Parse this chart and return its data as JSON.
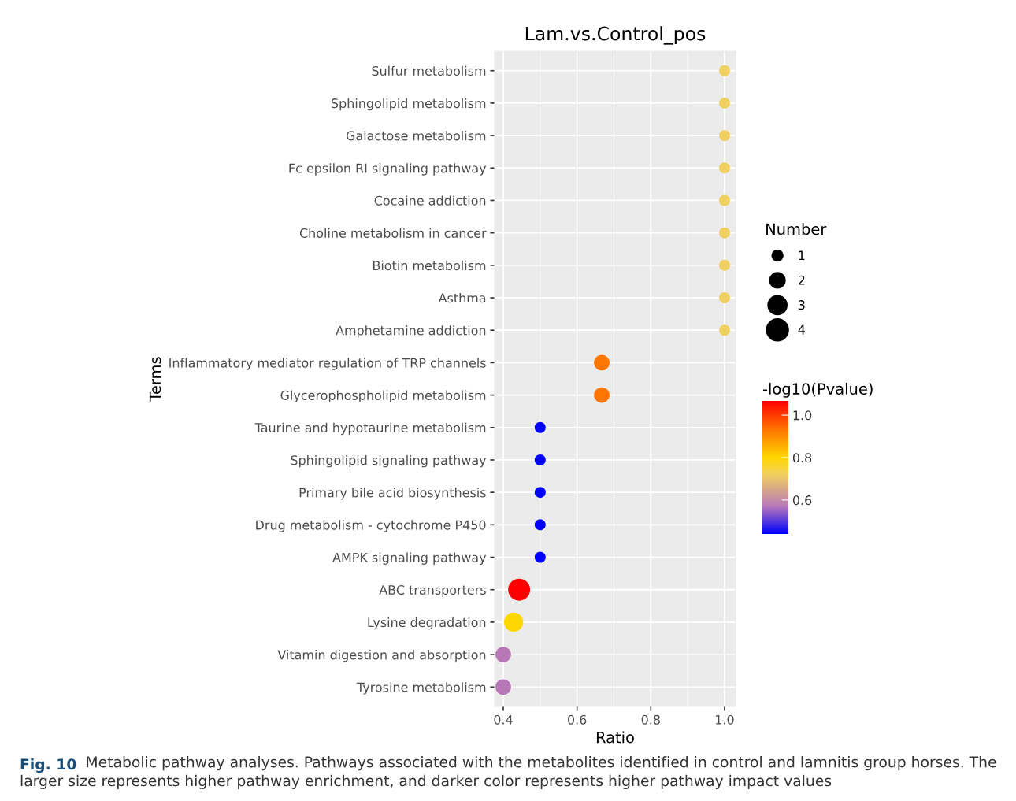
{
  "chart_data": {
    "type": "bubble",
    "orientation": "horizontal",
    "title": "Lam.vs.Control_pos",
    "xlabel": "Ratio",
    "ylabel": "Terms",
    "legend_title": "Number",
    "clabel": "-log10(Pvalue)",
    "categories": [
      "Sulfur metabolism",
      "Sphingolipid metabolism",
      "Galactose metabolism",
      "Fc epsilon RI signaling pathway",
      "Cocaine addiction",
      "Choline metabolism in cancer",
      "Biotin metabolism",
      "Asthma",
      "Amphetamine addiction",
      "Inflammatory mediator regulation of TRP channels",
      "Glycerophospholipid metabolism",
      "Taurine and hypotaurine metabolism",
      "Sphingolipid signaling pathway",
      "Primary bile acid biosynthesis",
      "Drug metabolism - cytochrome P450",
      "AMPK signaling pathway",
      "ABC transporters",
      "Lysine degradation",
      "Vitamin digestion and absorption",
      "Tyrosine metabolism"
    ],
    "values": [
      1.0,
      1.0,
      1.0,
      1.0,
      1.0,
      1.0,
      1.0,
      1.0,
      1.0,
      0.667,
      0.667,
      0.5,
      0.5,
      0.5,
      0.5,
      0.5,
      0.443,
      0.428,
      0.4,
      0.4
    ],
    "sizes": [
      1,
      1,
      1,
      1,
      1,
      1,
      1,
      1,
      1,
      2,
      2,
      1,
      1,
      1,
      1,
      1,
      4,
      3,
      2,
      2
    ],
    "size_legend": [
      1,
      2,
      3,
      4
    ],
    "cvalues": [
      0.72,
      0.72,
      0.72,
      0.72,
      0.72,
      0.72,
      0.72,
      0.72,
      0.72,
      0.93,
      0.93,
      0.44,
      0.44,
      0.44,
      0.44,
      0.44,
      1.067,
      0.8,
      0.57,
      0.57
    ],
    "colors": [
      "#f0d060",
      "#f0d060",
      "#f0d060",
      "#f0d060",
      "#f0d060",
      "#f0d060",
      "#f0d060",
      "#f0d060",
      "#f0d060",
      "#ff7700",
      "#ff7700",
      "#0000ff",
      "#0000ff",
      "#0000ff",
      "#0000ff",
      "#0000ff",
      "#ff0000",
      "#ffd700",
      "#b878b8",
      "#b878b8"
    ],
    "clim": [
      0.44,
      1.067
    ],
    "cticks": [
      0.6,
      0.8,
      {
        "value": 1,
        "label": "1.0"
      }
    ],
    "xlim": [
      0.3765,
      1.03
    ],
    "xticks": [
      0.4,
      0.6,
      0.8,
      {
        "value": 1,
        "label": "1.0"
      }
    ],
    "grid": true,
    "annotations": [
      "Fig. 10",
      "Metabolic pathway analyses. Pathways associated with the metabolites identified in control and lamnitis group horses. The larger size represents higher pathway enrichment, and darker color represents higher pathway impact values"
    ]
  }
}
